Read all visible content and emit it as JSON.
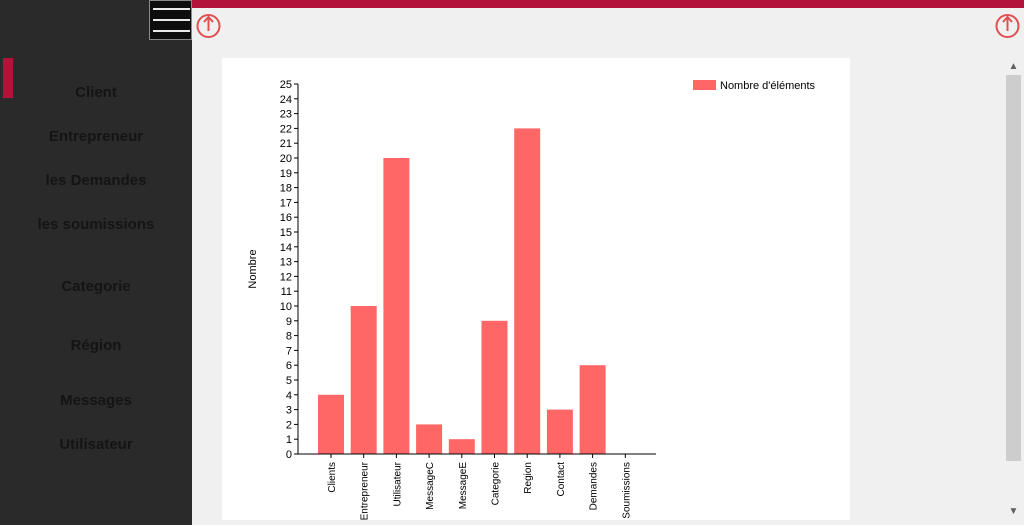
{
  "colors": {
    "accent": "#b3123a",
    "sidebar": "#2b2a2b",
    "bar": "#ff6666",
    "power_icon": "#e05050"
  },
  "nav": {
    "items": [
      {
        "label": "Client"
      },
      {
        "label": "Entrepreneur"
      },
      {
        "label": "les Demandes"
      },
      {
        "label": "les soumissions"
      },
      {
        "label": "Categorie"
      },
      {
        "label": "Région"
      },
      {
        "label": "Messages"
      },
      {
        "label": "Utilisateur"
      }
    ]
  },
  "icons": {
    "menu": "hamburger-menu-icon",
    "power": "power-icon"
  },
  "chart_data": {
    "type": "bar",
    "categories": [
      "Clients",
      "Entrepreneur",
      "Utilisateur",
      "MessageC",
      "MessageE",
      "Categorie",
      "Region",
      "Contact",
      "Demandes",
      "Soumissions"
    ],
    "series": [
      {
        "name": "Nombre d'éléments",
        "values": [
          4,
          10,
          20,
          2,
          1,
          9,
          22,
          3,
          6,
          0
        ]
      }
    ],
    "title": "",
    "xlabel": "",
    "ylabel": "Nombre",
    "ylim": [
      0,
      25
    ],
    "yticks": [
      "0",
      "1",
      "2",
      "3",
      "4",
      "5",
      "6",
      "7",
      "8",
      "9",
      "10",
      "11",
      "12",
      "13",
      "14",
      "15",
      "16",
      "17",
      "18",
      "19",
      "20",
      "21",
      "22",
      "23",
      "24",
      "25"
    ],
    "legend": "top-right",
    "grid": false
  }
}
